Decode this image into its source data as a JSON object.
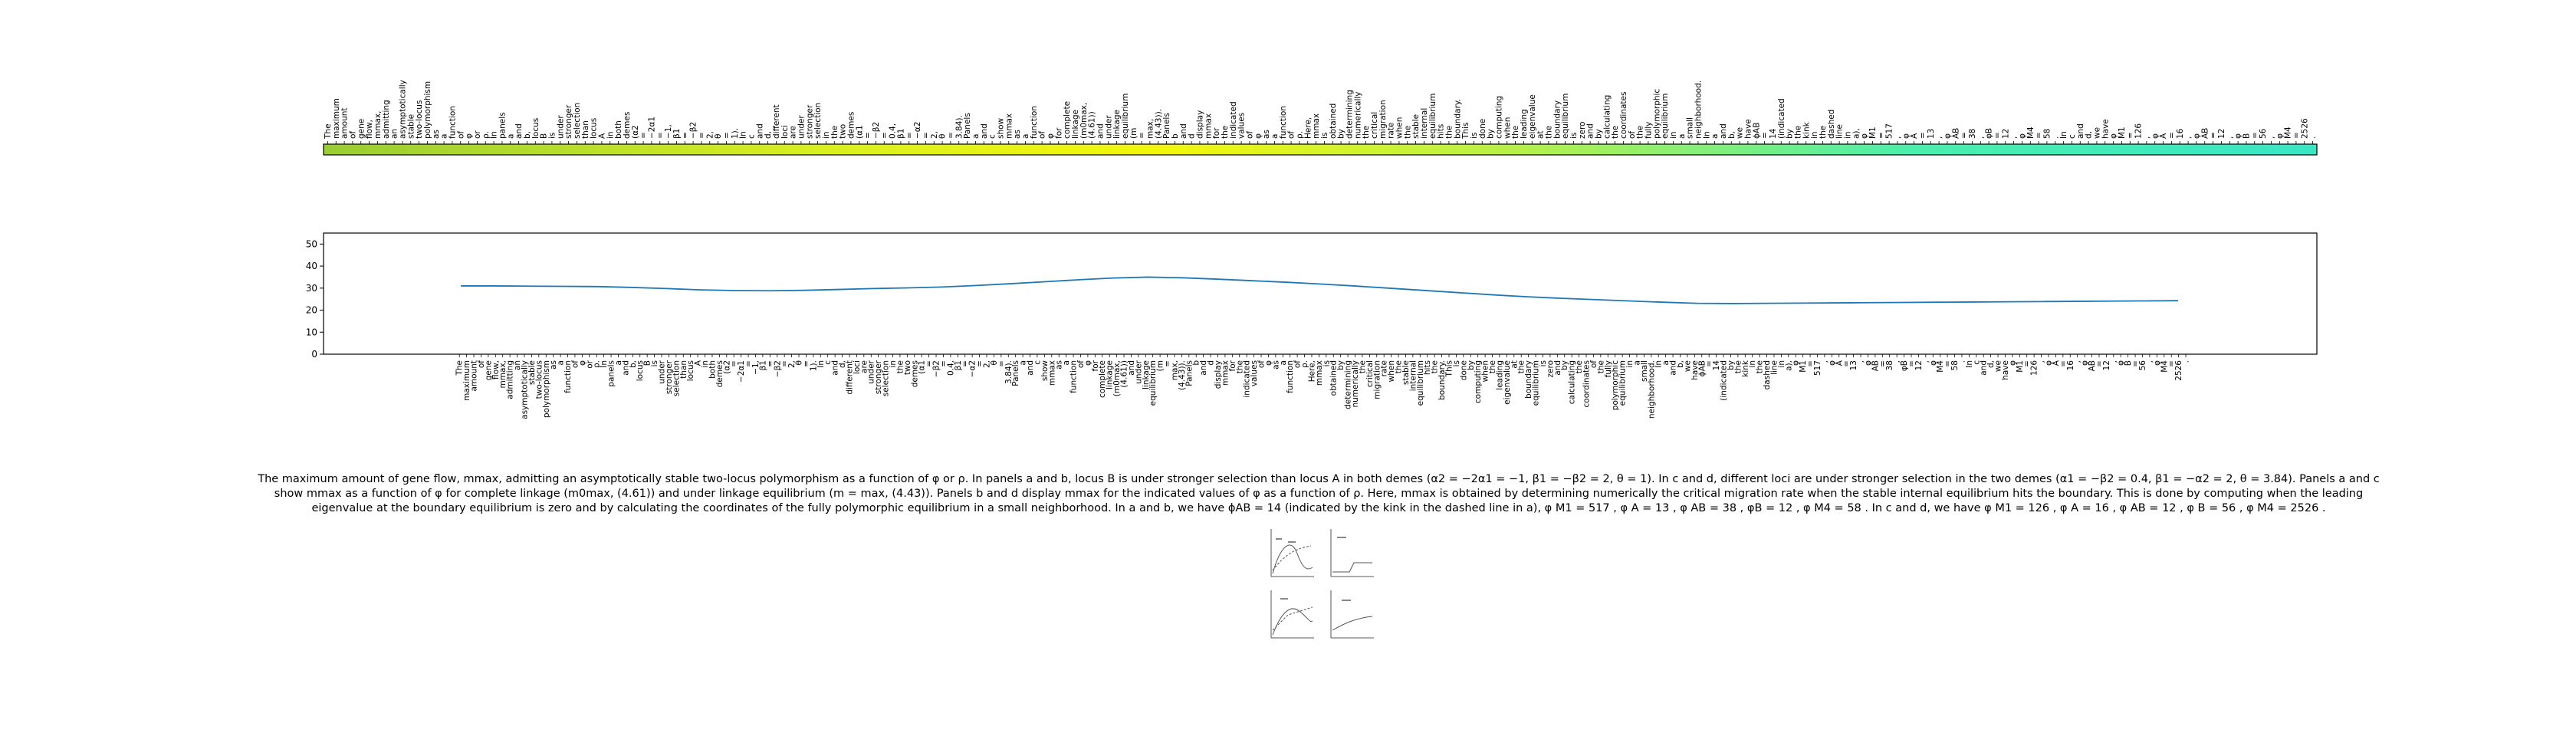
{
  "chart_data": [
    {
      "type": "heatmap",
      "colormap": [
        "#9acd32",
        "#d9f01f",
        "#f2f70a",
        "#b6f04a",
        "#4aeead",
        "#38e6c4"
      ],
      "colormap_stops": [
        0,
        0.25,
        0.42,
        0.6,
        0.8,
        1
      ],
      "tick_labels": [
        "The",
        "maximum",
        "amount",
        "of",
        "gene",
        "flow,",
        "mmax,",
        "admitting",
        "an",
        "asymptotically",
        "stable",
        "two-locus",
        "polymorphism",
        "as",
        "a",
        "function",
        "of",
        "φ",
        "or",
        "ρ.",
        "In",
        "panels",
        "a",
        "and",
        "b,",
        "locus",
        "B",
        "is",
        "under",
        "stronger",
        "selection",
        "than",
        "locus",
        "A",
        "in",
        "both",
        "demes",
        "(α2",
        "=",
        "−2α1",
        "=",
        "−1,",
        "β1",
        "=",
        "−β2",
        "=",
        "2,",
        "θ",
        "=",
        "1).",
        "In",
        "c",
        "and",
        "d,",
        "different",
        "loci",
        "are",
        "under",
        "stronger",
        "selection",
        "in",
        "the",
        "two",
        "demes",
        "(α1",
        "=",
        "−β2",
        "=",
        "0.4,",
        "β1",
        "=",
        "−α2",
        "=",
        "2,",
        "θ",
        "=",
        "3.84).",
        "Panels",
        "a",
        "and",
        "c",
        "show",
        "mmax",
        "as",
        "a",
        "function",
        "of",
        "φ",
        "for",
        "complete",
        "linkage",
        "(m0max,",
        "(4.61))",
        "and",
        "under",
        "linkage",
        "equilibrium",
        "(m",
        "=",
        "max,",
        "(4.43)).",
        "Panels",
        "b",
        "and",
        "d",
        "display",
        "mmax",
        "for",
        "the",
        "indicated",
        "values",
        "of",
        "φ",
        "as",
        "a",
        "function",
        "of",
        "ρ.",
        "Here,",
        "mmax",
        "is",
        "obtained",
        "by",
        "determining",
        "numerically",
        "the",
        "critical",
        "migration",
        "rate",
        "when",
        "the",
        "stable",
        "internal",
        "equilibrium",
        "hits",
        "the",
        "boundary.",
        "This",
        "is",
        "done",
        "by",
        "computing",
        "when",
        "the",
        "leading",
        "eigenvalue",
        "at",
        "the",
        "boundary",
        "equilibrium",
        "is",
        "zero",
        "and",
        "by",
        "calculating",
        "the",
        "coordinates",
        "of",
        "the",
        "fully",
        "polymorphic",
        "equilibrium",
        "in",
        "a",
        "small",
        "neighborhood.",
        "In",
        "a",
        "and",
        "b,",
        "we",
        "have",
        "ϕAB",
        "=",
        "14",
        "(indicated",
        "by",
        "the",
        "kink",
        "in",
        "the",
        "dashed",
        "line",
        "in",
        "a),",
        "φ",
        "M1",
        "=",
        "517",
        ",",
        "φ",
        "A",
        "=",
        "13",
        ",",
        "φ",
        "AB",
        "=",
        "38",
        ",",
        "φB",
        "=",
        "12",
        ",",
        "φ",
        "M4",
        "=",
        "58",
        ".",
        "In",
        "c",
        "and",
        "d,",
        "we",
        "have",
        "φ",
        "M1",
        "=",
        "126",
        ",",
        "φ",
        "A",
        "=",
        "16",
        ",",
        "φ",
        "AB",
        "=",
        "12",
        ",",
        "φ",
        "B",
        "=",
        "56",
        ",",
        "φ",
        "M4",
        "=",
        "2526",
        "."
      ]
    },
    {
      "type": "line",
      "x": [
        0,
        25,
        50,
        75,
        100,
        125,
        150,
        175,
        200,
        225,
        250,
        275,
        300,
        325,
        350,
        375,
        400,
        425,
        450,
        475,
        500,
        525,
        550,
        575,
        600,
        625,
        650,
        675,
        700,
        725,
        750,
        775,
        800,
        825,
        850,
        875,
        900,
        925,
        950,
        975,
        1000,
        1025,
        1050,
        1075,
        1100,
        1125,
        1150,
        1175,
        1200,
        1225,
        1250
      ],
      "series": [
        {
          "color": "#1f77b4",
          "values": [
            31.0,
            31.0,
            30.9,
            30.8,
            30.7,
            30.3,
            29.8,
            29.2,
            28.9,
            28.8,
            29.0,
            29.4,
            29.8,
            30.1,
            30.5,
            31.2,
            32.0,
            32.9,
            33.8,
            34.6,
            35.0,
            34.7,
            34.1,
            33.4,
            32.7,
            31.9,
            31.0,
            30.0,
            29.0,
            28.0,
            27.0,
            26.1,
            25.4,
            24.8,
            24.2,
            23.6,
            23.1,
            23.0,
            23.1,
            23.2,
            23.3,
            23.4,
            23.5,
            23.6,
            23.7,
            23.8,
            23.9,
            24.0,
            24.1,
            24.2,
            24.3
          ]
        }
      ],
      "ylim": [
        0,
        55
      ],
      "yticks": [
        0,
        10,
        20,
        30,
        40,
        50
      ],
      "xlim": [
        -100,
        1351
      ],
      "grid": false
    }
  ],
  "caption": "The maximum amount of gene flow, mmax, admitting an asymptotically stable two-locus polymorphism as a function of φ or ρ. In panels a and b, locus B is under stronger selection than locus A in both demes (α2 = −2α1 = −1, β1 = −β2 = 2, θ = 1). In c and d, different loci are under stronger selection in the two demes (α1 = −β2 = 0.4, β1 = −α2 = 2, θ = 3.84). Panels a and c show mmax as a function of φ for complete linkage (m0max, (4.61)) and under linkage equilibrium (m = max, (4.43)). Panels b and d display mmax for the indicated values of φ as a function of ρ. Here, mmax is obtained by determining numerically the critical migration rate when the stable internal equilibrium hits the boundary. This is done by computing when the leading eigenvalue at the boundary equilibrium is zero and by calculating the coordinates of the fully polymorphic equilibrium in a small neighborhood. In a and b, we have ϕAB = 14 (indicated by the kink in the dashed line in a), φ M1 = 517 , φ A = 13 , φ AB = 38 , φB = 12 , φ M4 = 58 . In c and d, we have φ M1 = 126 , φ A = 16 , φ AB = 12 , φ B = 56 , φ M4 = 2526 ."
}
